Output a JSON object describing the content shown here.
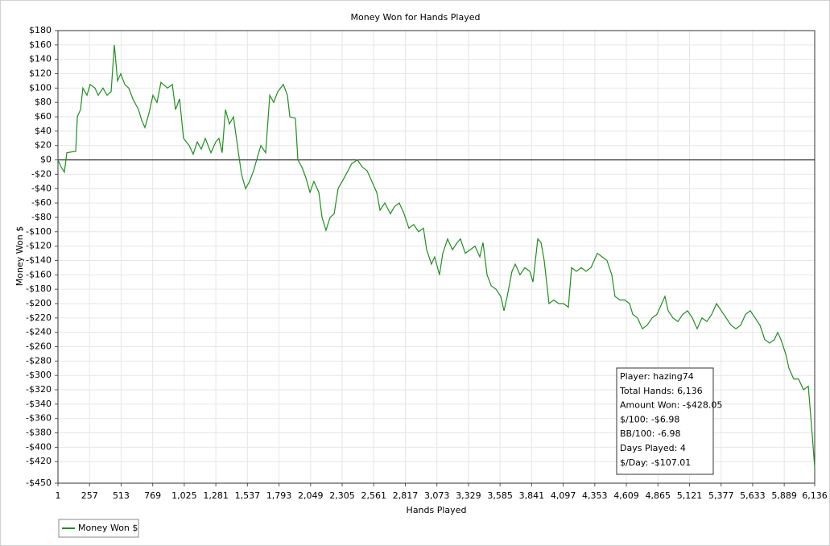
{
  "chart_data": {
    "type": "line",
    "title": "Money Won for Hands Played",
    "x_label": "Hands Played",
    "y_label": "Money Won $",
    "xlim": [
      1,
      6136
    ],
    "ylim": [
      -450,
      180
    ],
    "grid": true,
    "legend": "bottom-left",
    "zero_line": true,
    "xticks": [
      1,
      257,
      513,
      769,
      {
        "value": 1025,
        "label": "1,025"
      },
      {
        "value": 1281,
        "label": "1,281"
      },
      {
        "value": 1537,
        "label": "1,537"
      },
      {
        "value": 1793,
        "label": "1,793"
      },
      {
        "value": 2049,
        "label": "2,049"
      },
      {
        "value": 2305,
        "label": "2,305"
      },
      {
        "value": 2561,
        "label": "2,561"
      },
      {
        "value": 2817,
        "label": "2,817"
      },
      {
        "value": 3073,
        "label": "3,073"
      },
      {
        "value": 3329,
        "label": "3,329"
      },
      {
        "value": 3585,
        "label": "3,585"
      },
      {
        "value": 3841,
        "label": "3,841"
      },
      {
        "value": 4097,
        "label": "4,097"
      },
      {
        "value": 4353,
        "label": "4,353"
      },
      {
        "value": 4609,
        "label": "4,609"
      },
      {
        "value": 4865,
        "label": "4,865"
      },
      {
        "value": 5121,
        "label": "5,121"
      },
      {
        "value": 5377,
        "label": "5,377"
      },
      {
        "value": 5633,
        "label": "5,633"
      },
      {
        "value": 5889,
        "label": "5,889"
      },
      {
        "value": 6136,
        "label": "6,136"
      }
    ],
    "yticks": [
      {
        "value": -450,
        "label": "-$450"
      },
      {
        "value": -420,
        "label": "-$420"
      },
      {
        "value": -400,
        "label": "-$400"
      },
      {
        "value": -380,
        "label": "-$380"
      },
      {
        "value": -360,
        "label": "-$360"
      },
      {
        "value": -340,
        "label": "-$340"
      },
      {
        "value": -320,
        "label": "-$320"
      },
      {
        "value": -300,
        "label": "-$300"
      },
      {
        "value": -280,
        "label": "-$280"
      },
      {
        "value": -260,
        "label": "-$260"
      },
      {
        "value": -240,
        "label": "-$240"
      },
      {
        "value": -220,
        "label": "-$220"
      },
      {
        "value": -200,
        "label": "-$200"
      },
      {
        "value": -180,
        "label": "-$180"
      },
      {
        "value": -160,
        "label": "-$160"
      },
      {
        "value": -140,
        "label": "-$140"
      },
      {
        "value": -120,
        "label": "-$120"
      },
      {
        "value": -100,
        "label": "-$100"
      },
      {
        "value": -80,
        "label": "-$80"
      },
      {
        "value": -60,
        "label": "-$60"
      },
      {
        "value": -40,
        "label": "-$40"
      },
      {
        "value": -20,
        "label": "-$20"
      },
      {
        "value": 0,
        "label": "$0"
      },
      {
        "value": 20,
        "label": "$20"
      },
      {
        "value": 40,
        "label": "$40"
      },
      {
        "value": 60,
        "label": "$60"
      },
      {
        "value": 80,
        "label": "$80"
      },
      {
        "value": 100,
        "label": "$100"
      },
      {
        "value": 120,
        "label": "$120"
      },
      {
        "value": 140,
        "label": "$140"
      },
      {
        "value": 160,
        "label": "$160"
      },
      {
        "value": 180,
        "label": "$180"
      }
    ],
    "x": [
      1,
      27,
      53,
      73,
      145,
      158,
      184,
      203,
      236,
      262,
      301,
      327,
      366,
      399,
      432,
      458,
      484,
      510,
      543,
      575,
      608,
      654,
      680,
      706,
      739,
      771,
      804,
      836,
      889,
      928,
      954,
      987,
      1019,
      1065,
      1097,
      1130,
      1163,
      1195,
      1241,
      1280,
      1306,
      1332,
      1359,
      1391,
      1424,
      1456,
      1489,
      1522,
      1554,
      1587,
      1620,
      1646,
      1685,
      1718,
      1750,
      1783,
      1828,
      1861,
      1881,
      1926,
      1946,
      1979,
      2011,
      2044,
      2076,
      2116,
      2142,
      2174,
      2207,
      2240,
      2272,
      2305,
      2337,
      2383,
      2429,
      2468,
      2507,
      2546,
      2585,
      2612,
      2651,
      2696,
      2729,
      2768,
      2807,
      2846,
      2885,
      2925,
      2964,
      2990,
      3029,
      3055,
      3094,
      3121,
      3160,
      3199,
      3238,
      3264,
      3303,
      3343,
      3382,
      3421,
      3447,
      3480,
      3513,
      3552,
      3591,
      3617,
      3643,
      3682,
      3708,
      3747,
      3786,
      3826,
      3852,
      3891,
      3917,
      3943,
      3982,
      4021,
      4060,
      4100,
      4139,
      4165,
      4204,
      4243,
      4282,
      4322,
      4348,
      4374,
      4413,
      4452,
      4491,
      4517,
      4557,
      4596,
      4635,
      4661,
      4700,
      4739,
      4778,
      4818,
      4857,
      4896,
      4922,
      4948,
      4987,
      5027,
      5066,
      5105,
      5144,
      5183,
      5222,
      5262,
      5301,
      5340,
      5379,
      5418,
      5457,
      5497,
      5536,
      5575,
      5614,
      5653,
      5692,
      5731,
      5770,
      5810,
      5836,
      5862,
      5901,
      5927,
      5966,
      6005,
      6045,
      6084,
      6110,
      6136
    ],
    "series": [
      {
        "name": "Money Won $",
        "color": "#1f8f1f",
        "values": [
          0,
          -10,
          -17,
          10,
          12,
          60,
          70,
          100,
          90,
          105,
          100,
          90,
          100,
          90,
          95,
          160,
          110,
          120,
          105,
          100,
          85,
          70,
          55,
          45,
          65,
          90,
          80,
          108,
          100,
          105,
          70,
          85,
          30,
          20,
          8,
          25,
          15,
          30,
          10,
          25,
          30,
          10,
          70,
          50,
          60,
          20,
          -20,
          -40,
          -30,
          -15,
          5,
          20,
          10,
          90,
          80,
          95,
          105,
          90,
          60,
          58,
          0,
          -10,
          -25,
          -45,
          -30,
          -45,
          -80,
          -98,
          -80,
          -75,
          -40,
          -30,
          -20,
          -5,
          0,
          -10,
          -15,
          -30,
          -45,
          -70,
          -60,
          -75,
          -65,
          -60,
          -75,
          -95,
          -90,
          -100,
          -95,
          -125,
          -145,
          -135,
          -160,
          -130,
          -110,
          -125,
          -115,
          -110,
          -130,
          -125,
          -120,
          -135,
          -115,
          -160,
          -175,
          -180,
          -190,
          -210,
          -190,
          -155,
          -145,
          -160,
          -150,
          -155,
          -170,
          -110,
          -115,
          -140,
          -200,
          -195,
          -200,
          -200,
          -205,
          -150,
          -155,
          -150,
          -155,
          -150,
          -140,
          -130,
          -135,
          -140,
          -160,
          -190,
          -195,
          -195,
          -200,
          -215,
          -220,
          -235,
          -230,
          -220,
          -215,
          -200,
          -190,
          -210,
          -220,
          -225,
          -215,
          -210,
          -220,
          -235,
          -220,
          -225,
          -215,
          -200,
          -210,
          -220,
          -230,
          -235,
          -230,
          -215,
          -210,
          -220,
          -230,
          -250,
          -255,
          -250,
          -240,
          -250,
          -270,
          -290,
          -305,
          -305,
          -320,
          -315,
          -370,
          -428.05
        ]
      }
    ],
    "stats": [
      "Player: hazing74",
      "Total Hands: 6,136",
      "Amount Won: -$428.05",
      "$/100: -$6.98",
      "BB/100: -6.98",
      "Days Played: 4",
      "$/Day: -$107.01"
    ]
  }
}
